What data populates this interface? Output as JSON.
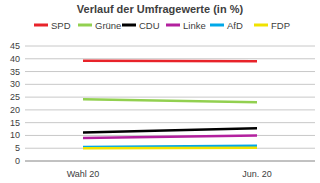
{
  "chart_data": {
    "type": "line",
    "title": "Verlauf der Umfragewerte (in %)",
    "categories": [
      "Wahl 20",
      "Jun. 20"
    ],
    "series": [
      {
        "name": "SPD",
        "color": "#e8232a",
        "values": [
          39.2,
          39.0
        ]
      },
      {
        "name": "Grüne",
        "color": "#92d050",
        "values": [
          24.2,
          23.0
        ]
      },
      {
        "name": "CDU",
        "color": "#000000",
        "values": [
          11.2,
          12.8
        ]
      },
      {
        "name": "Linke",
        "color": "#b3209e",
        "values": [
          9.0,
          10.0
        ]
      },
      {
        "name": "AfD",
        "color": "#00a8e8",
        "values": [
          5.5,
          6.0
        ]
      },
      {
        "name": "FDP",
        "color": "#f0e200",
        "values": [
          5.0,
          5.2
        ]
      }
    ],
    "ylim": [
      0,
      45
    ],
    "yticks": [
      0,
      5,
      10,
      15,
      20,
      25,
      30,
      35,
      40,
      45
    ],
    "grid": true,
    "legend": "top"
  }
}
